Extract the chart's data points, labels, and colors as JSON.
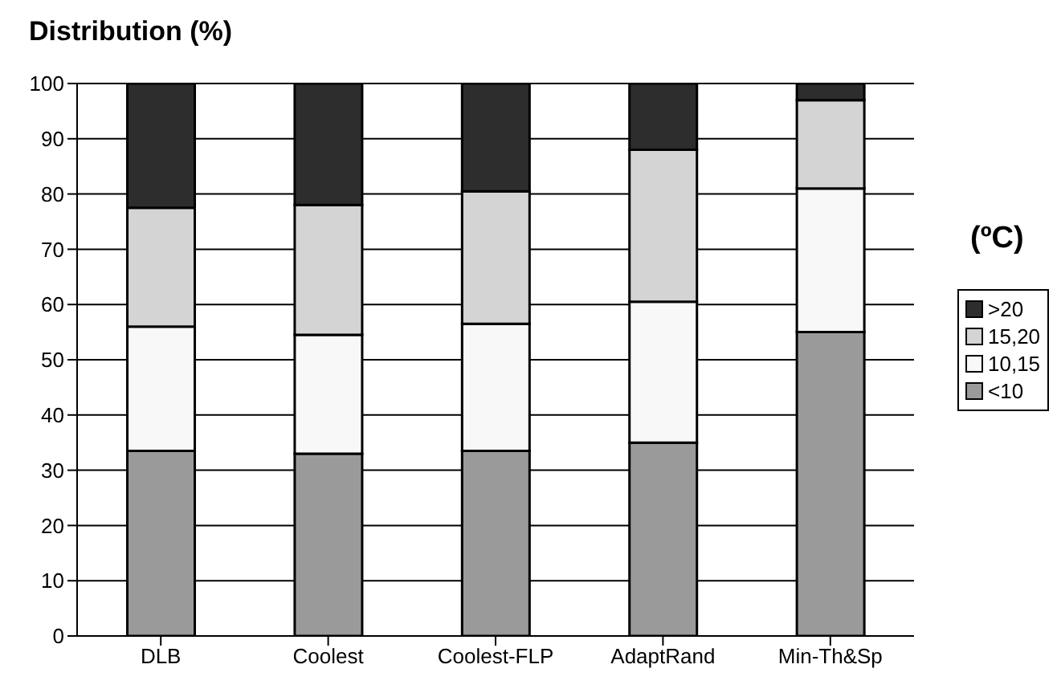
{
  "chart_data": {
    "type": "bar",
    "title": "Distribution (%)",
    "legend_title": "(ºC)",
    "stacked": true,
    "categories": [
      "DLB",
      "Coolest",
      "Coolest-FLP",
      "AdaptRand",
      "Min-Th&Sp"
    ],
    "series": [
      {
        "name": "<10",
        "color": "#9a9a9a",
        "values": [
          33.5,
          33,
          33.5,
          35,
          55
        ]
      },
      {
        "name": "10,15",
        "color": "#f8f8f8",
        "values": [
          22.5,
          21.5,
          23,
          25.5,
          26
        ]
      },
      {
        "name": "15,20",
        "color": "#d4d4d4",
        "values": [
          21.5,
          23.5,
          24,
          27.5,
          16
        ]
      },
      {
        "name": ">20",
        "color": "#2d2d2d",
        "values": [
          22.5,
          22,
          19.5,
          12,
          3
        ]
      }
    ],
    "ylim": [
      0,
      100
    ],
    "yticks": [
      0,
      10,
      20,
      30,
      40,
      50,
      60,
      70,
      80,
      90,
      100
    ],
    "grid": "y",
    "legend": "right"
  }
}
